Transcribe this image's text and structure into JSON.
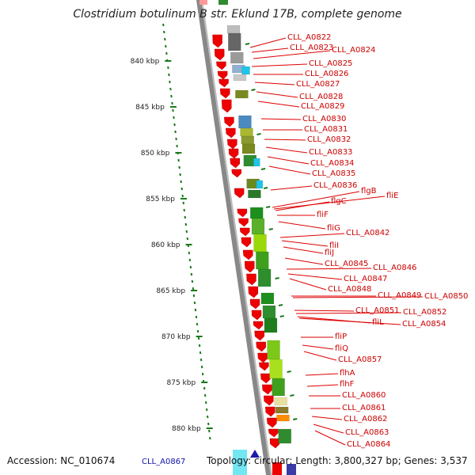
{
  "title": "Clostridium botulinum B str. Eklund 17B, complete genome",
  "footer": {
    "accession": "Accession: NC_010674",
    "info": "Topology: circular; Length: 3,800,327 bp; Genes: 3,537",
    "bottom_gene": "CLL_A0867"
  },
  "colors": {
    "gene_arrow": "#ee0000",
    "label": "#cc0000",
    "tick": "#1a7a1a",
    "backbone": "#888888"
  },
  "ruler": [
    {
      "label": "840 kbp",
      "pos": 840
    },
    {
      "label": "845 kbp",
      "pos": 845
    },
    {
      "label": "850 kbp",
      "pos": 850
    },
    {
      "label": "855 kbp",
      "pos": 855
    },
    {
      "label": "860 kbp",
      "pos": 860
    },
    {
      "label": "865 kbp",
      "pos": 865
    },
    {
      "label": "870 kbp",
      "pos": 870
    },
    {
      "label": "875 kbp",
      "pos": 875
    },
    {
      "label": "880 kbp",
      "pos": 880
    }
  ],
  "genes": [
    "CLL_A0822",
    "CLL_A0823",
    "CLL_A0824",
    "CLL_A0825",
    "CLL_A0826",
    "CLL_A0827",
    "CLL_A0828",
    "CLL_A0829",
    "CLL_A0830",
    "CLL_A0831",
    "CLL_A0832",
    "CLL_A0833",
    "CLL_A0834",
    "CLL_A0835",
    "CLL_A0836",
    "flgB",
    "fliE",
    "flgC",
    "fliF",
    "fliG",
    "CLL_A0842",
    "fliI",
    "fliJ",
    "CLL_A0845",
    "CLL_A0846",
    "CLL_A0847",
    "CLL_A0848",
    "CLL_A0849",
    "CLL_A0850",
    "CLL_A0851",
    "CLL_A0852",
    "fliL",
    "CLL_A0854",
    "fliP",
    "fliQ",
    "CLL_A0857",
    "flhA",
    "flhF",
    "CLL_A0860",
    "CLL_A0861",
    "CLL_A0862",
    "CLL_A0863",
    "CLL_A0864"
  ]
}
